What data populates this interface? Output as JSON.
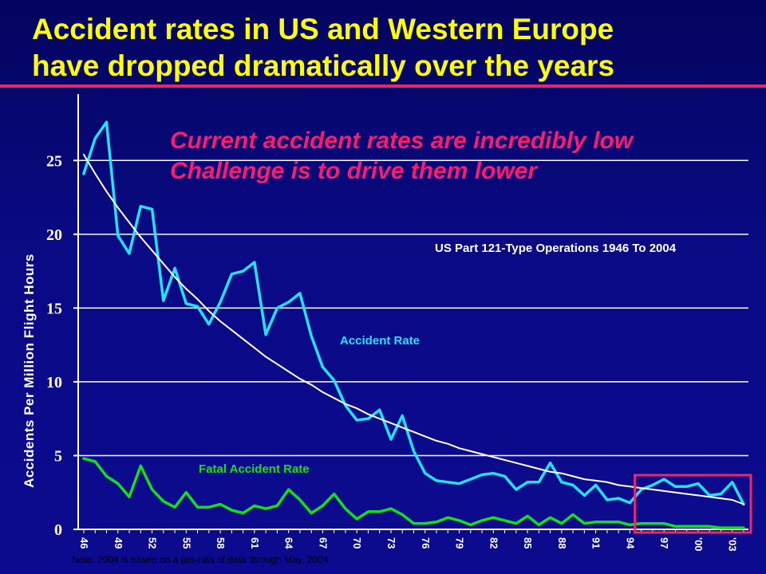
{
  "slide": {
    "title_line1": "Accident rates in US and Western Europe",
    "title_line2": "have dropped dramatically over the years",
    "subtitle_line1": "Current accident rates are incredibly low",
    "subtitle_line2": "Challenge is to drive them lower",
    "note": "Note: 2004 is based on a pro-rata of data through May, 2004."
  },
  "colors": {
    "title": "#ffff00",
    "subtitle": "#ff1a6e",
    "accident_rate": "#1fe3ff",
    "fatal_rate": "#12e01a",
    "trend": "#ffffff",
    "highlight_box": "#e8296b",
    "background": "#0a0a86"
  },
  "chart_data": {
    "type": "line",
    "title": "US Part 121-Type Operations 1946 To 2004",
    "xlabel": "",
    "ylabel": "Accidents Per Million Flight  Hours",
    "ylim": [
      0,
      29.5
    ],
    "yticks": [
      0,
      5,
      10,
      15,
      20,
      25
    ],
    "grid": true,
    "x": [
      1946,
      1947,
      1948,
      1949,
      1950,
      1951,
      1952,
      1953,
      1954,
      1955,
      1956,
      1957,
      1958,
      1959,
      1960,
      1961,
      1962,
      1963,
      1964,
      1965,
      1966,
      1967,
      1968,
      1969,
      1970,
      1971,
      1972,
      1973,
      1974,
      1975,
      1976,
      1977,
      1978,
      1979,
      1980,
      1981,
      1982,
      1983,
      1984,
      1985,
      1986,
      1987,
      1988,
      1989,
      1990,
      1991,
      1992,
      1993,
      1994,
      1995,
      1996,
      1997,
      1998,
      1999,
      2000,
      2001,
      2002,
      2003,
      2004
    ],
    "xtick_labels": [
      "46",
      "49",
      "52",
      "55",
      "58",
      "61",
      "64",
      "67",
      "70",
      "73",
      "76",
      "79",
      "82",
      "85",
      "88",
      "91",
      "94",
      "97",
      "'00",
      "'03"
    ],
    "xtick_years": [
      1946,
      1949,
      1952,
      1955,
      1958,
      1961,
      1964,
      1967,
      1970,
      1973,
      1976,
      1979,
      1982,
      1985,
      1988,
      1991,
      1994,
      1997,
      2000,
      2003
    ],
    "series": [
      {
        "name": "Accident Rate",
        "color": "#1fe3ff",
        "values": [
          24.1,
          26.5,
          27.6,
          19.9,
          18.7,
          21.9,
          21.7,
          15.5,
          17.7,
          15.3,
          15.1,
          13.9,
          15.4,
          17.3,
          17.5,
          18.1,
          13.2,
          15.0,
          15.4,
          16.0,
          13.1,
          11.0,
          10.1,
          8.4,
          7.4,
          7.5,
          8.1,
          6.1,
          7.7,
          5.3,
          3.8,
          3.3,
          3.2,
          3.1,
          3.4,
          3.7,
          3.8,
          3.6,
          2.7,
          3.2,
          3.2,
          4.5,
          3.2,
          3.0,
          2.3,
          3.0,
          2.0,
          2.1,
          1.8,
          2.7,
          3.0,
          3.4,
          2.9,
          2.9,
          3.1,
          2.3,
          2.4,
          3.2,
          1.7
        ]
      },
      {
        "name": "Fatal Accident Rate",
        "color": "#12e01a",
        "values": [
          4.8,
          4.6,
          3.6,
          3.1,
          2.2,
          4.3,
          2.7,
          1.9,
          1.5,
          2.5,
          1.5,
          1.5,
          1.7,
          1.3,
          1.1,
          1.6,
          1.4,
          1.6,
          2.7,
          2.0,
          1.1,
          1.6,
          2.4,
          1.4,
          0.7,
          1.2,
          1.2,
          1.4,
          1.0,
          0.4,
          0.4,
          0.5,
          0.8,
          0.6,
          0.3,
          0.6,
          0.8,
          0.6,
          0.4,
          0.9,
          0.3,
          0.8,
          0.4,
          1.0,
          0.4,
          0.5,
          0.5,
          0.5,
          0.3,
          0.4,
          0.4,
          0.4,
          0.2,
          0.2,
          0.2,
          0.2,
          0.1,
          0.1,
          0.1
        ]
      },
      {
        "name": "",
        "style": "trend",
        "color": "#ffffff",
        "values": [
          25.4,
          24.1,
          22.9,
          21.8,
          20.8,
          19.8,
          18.9,
          18.0,
          17.1,
          16.3,
          15.6,
          14.8,
          14.1,
          13.5,
          12.9,
          12.3,
          11.7,
          11.2,
          10.7,
          10.2,
          9.8,
          9.3,
          8.9,
          8.5,
          8.2,
          7.8,
          7.5,
          7.2,
          6.9,
          6.6,
          6.3,
          6.0,
          5.8,
          5.5,
          5.3,
          5.1,
          4.9,
          4.7,
          4.5,
          4.3,
          4.1,
          3.9,
          3.8,
          3.6,
          3.4,
          3.3,
          3.2,
          3.0,
          2.9,
          2.8,
          2.7,
          2.6,
          2.5,
          2.4,
          2.3,
          2.2,
          2.1,
          2.0,
          1.7
        ]
      }
    ],
    "annotations": {
      "operations_label": "US Part 121-Type Operations 1946 To 2004",
      "accident_label": "Accident Rate",
      "fatal_label": "Fatal Accident Rate"
    },
    "highlight": {
      "from_year": 1995,
      "to_year": 2004
    }
  }
}
